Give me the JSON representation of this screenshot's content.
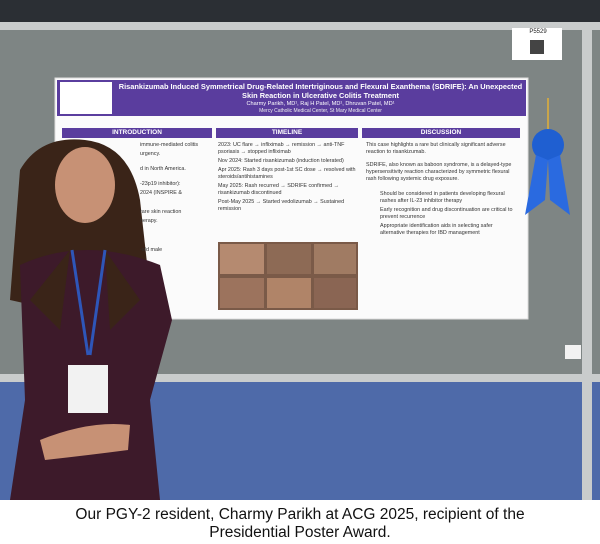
{
  "poster": {
    "number": "P5529",
    "title": "Risankizumab Induced Symmetrical Drug-Related Intertriginous and Flexural Exanthema (SDRIFE): An Unexpected Skin Reaction in Ulcerative Colitis Treatment",
    "authors": "Charmy Parikh, MD¹, Raj H Patel, MD¹, Dhruvan Patel, MD¹",
    "affiliation": "Mercy Catholic Medical Center, St Mary Medical Center",
    "sections": [
      {
        "heading": "INTRODUCTION",
        "lines": [
          "immune-mediated colitis",
          "urgency.",
          "d in North America.",
          "-23p19 inhibitor):",
          "2024 (INSPIRE &",
          "rare skin reaction",
          "herapy.",
          "-old male"
        ]
      },
      {
        "heading": "TIMELINE",
        "lines": [
          "2023: UC flare → infliximab → remission → anti-TNF psoriasis → stopped infliximab",
          "Nov 2024: Started risankizumab (induction tolerated)",
          "Apr 2025: Rash 3 days post-1st SC dose → resolved with steroids/antihistamines",
          "May 2025: Rash recurred → SDRIFE confirmed → risankizumab discontinued",
          "Post-May 2025 → Started vedolizumab → Sustained remission"
        ]
      },
      {
        "heading": "DISCUSSION",
        "lines": [
          "This case highlights a rare but clinically significant adverse reaction to risankizumab.",
          "SDRIFE, also known as baboon syndrome, is a delayed-type hypersensitivity reaction characterized by symmetric flexural rash following systemic drug exposure.",
          "Should be considered in patients developing flexural rashes after IL-23 inhibitor therapy",
          "Early recognition and drug discontinuation are critical to prevent recurrence",
          "Appropriate identification aids in selecting safer alternative therapies for IBD management"
        ]
      }
    ]
  },
  "caption": {
    "lines": [
      "Our PGY-2 resident, Charmy Parikh at ACG 2025, recipient of the",
      "Presidential Poster Award."
    ]
  }
}
